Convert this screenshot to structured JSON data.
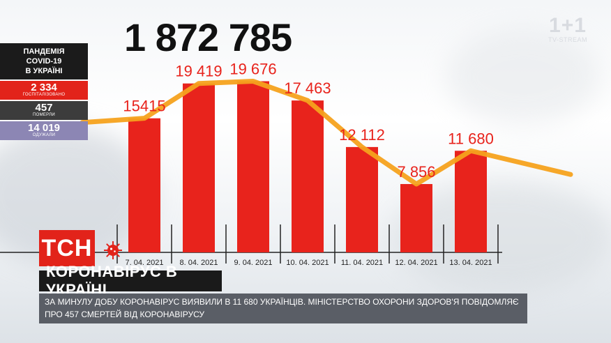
{
  "total_cases": "1 872 785",
  "stats": {
    "title_lines": [
      "ПАНДЕМІЯ",
      "COVID-19",
      "В УКРАЇНІ"
    ],
    "hospitalized": {
      "value": "2 334",
      "label": "ГОСПІТАЛІЗОВАНО"
    },
    "deaths": {
      "value": "457",
      "label": "ПОМЕРЛИ"
    },
    "recovered": {
      "value": "14 019",
      "label": "ОДУЖАЛИ"
    }
  },
  "logo": {
    "main": "1+1",
    "sub": "TV-STREAM"
  },
  "tsn": "ТСН",
  "headline": "КОРОНАВІРУС В УКРАЇНІ",
  "ticker": "ЗА МИНУЛУ ДОБУ КОРОНАВІРУС ВИЯВИЛИ В 11 680 УКРАЇНЦІВ. МІНІСТЕРСТВО ОХОРОНИ ЗДОРОВ'Я ПОВІДОМЛЯЄ ПРО 457 СМЕРТЕЙ ВІД КОРОНАВІРУСУ",
  "colors": {
    "bar": "#e8231c",
    "line": "#f5a21e",
    "label": "#e8231c",
    "axis": "#222222"
  },
  "chart_data": {
    "type": "bar",
    "categories": [
      "7. 04. 2021",
      "8. 04. 2021",
      "9. 04. 2021",
      "10. 04. 2021",
      "11. 04. 2021",
      "12. 04. 2021",
      "13. 04. 2021"
    ],
    "values": [
      15415,
      19419,
      19676,
      17463,
      12112,
      7856,
      11680
    ],
    "value_labels": [
      "15415",
      "19 419",
      "19 676",
      "17 463",
      "12 112",
      "7 856",
      "11 680"
    ],
    "trend_line": true,
    "ylim": [
      0,
      21000
    ],
    "title": "",
    "xlabel": "",
    "ylabel": ""
  }
}
